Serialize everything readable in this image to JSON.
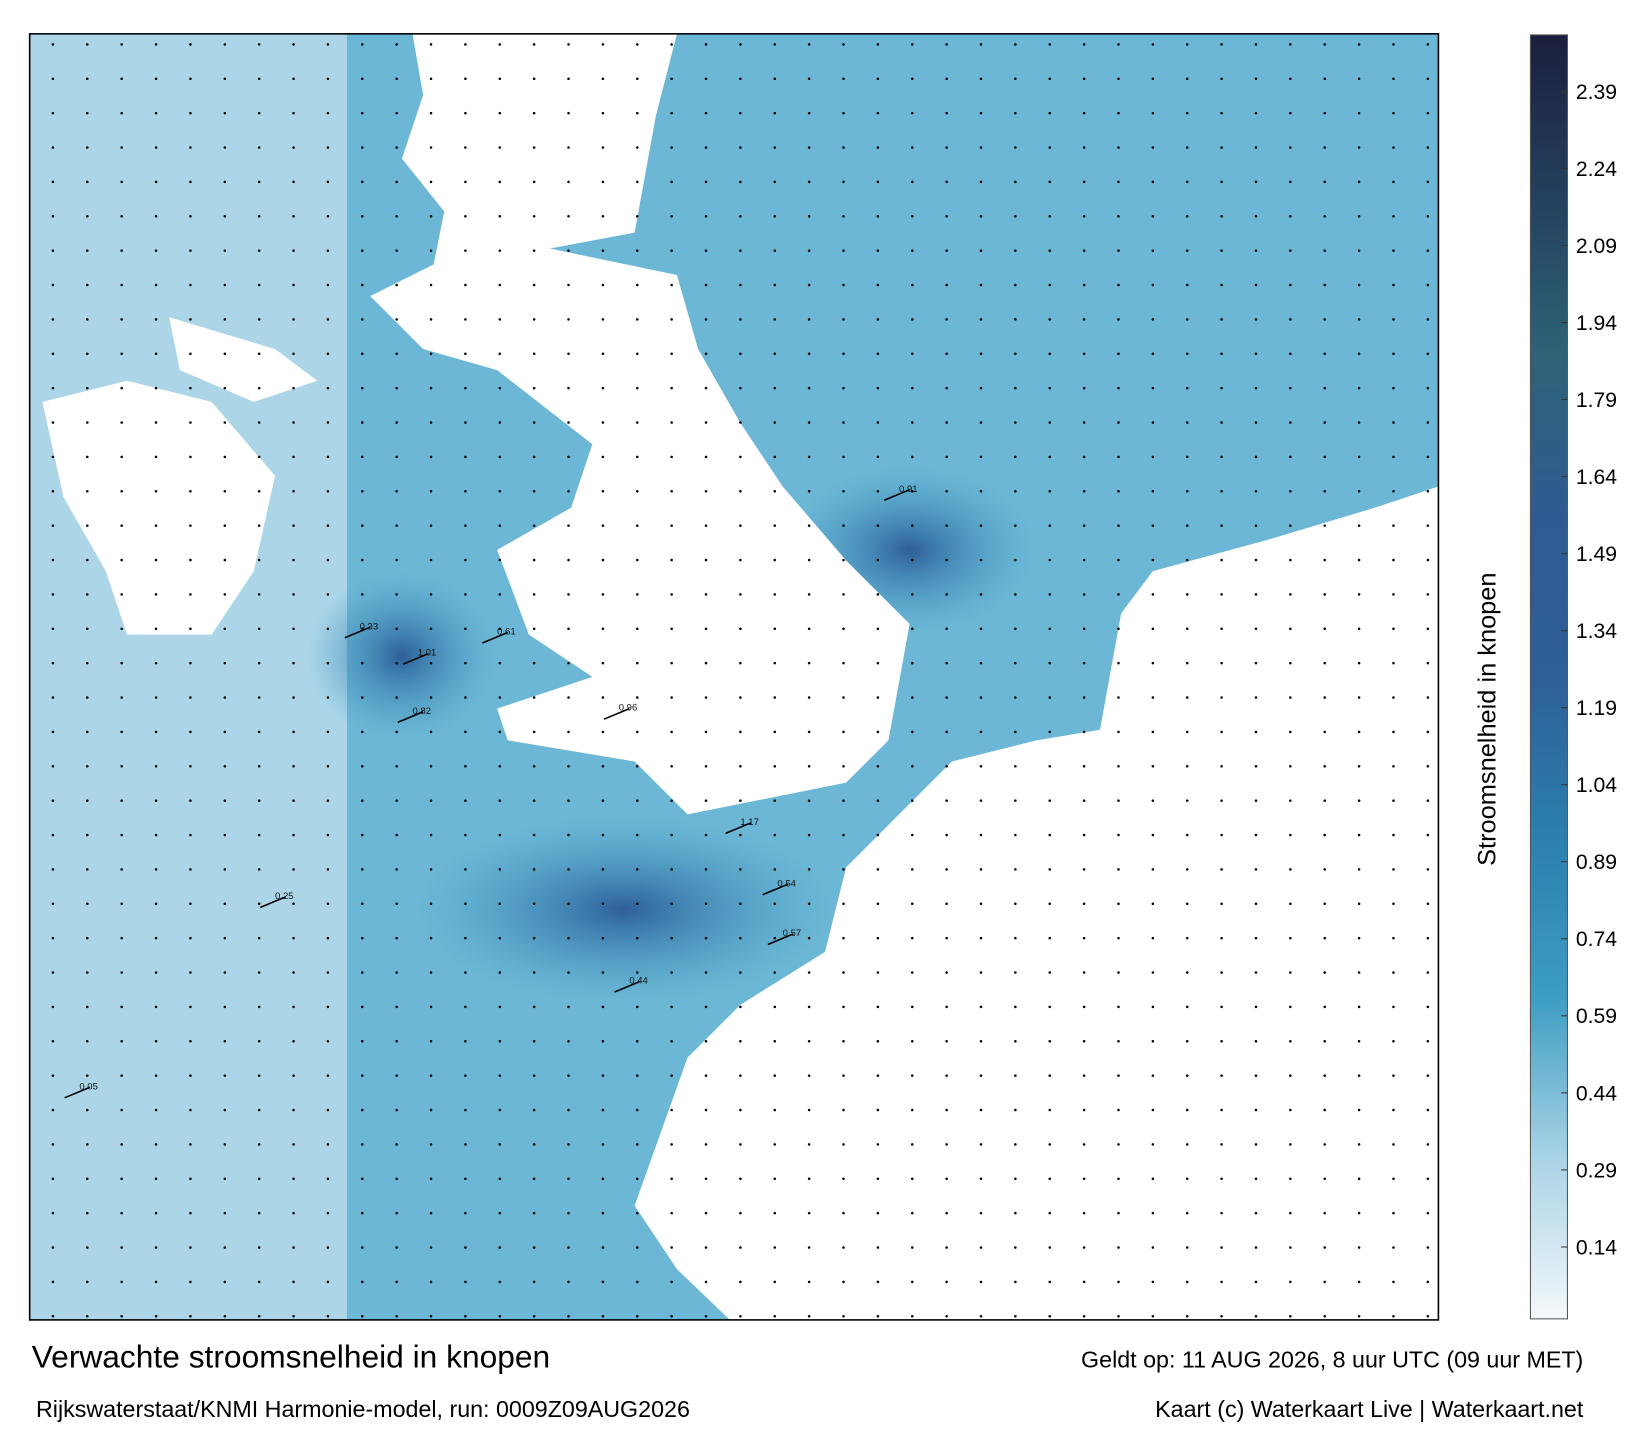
{
  "map": {
    "footer_title": "Verwachte stroomsnelheid in knopen",
    "footer_source": "Rijkswaterstaat/KNMI Harmonie-model, run: 0009Z09AUG2026",
    "valid": "Geldt op: 11 AUG 2026, 8 uur UTC (09 uur MET)",
    "credit": "Kaart (c) Waterkaart Live | Waterkaart.net",
    "labels": [
      "0.96",
      "1.01",
      "0.91",
      "1.17",
      "0.54",
      "0.82",
      "0.61",
      "0.33",
      "0.25",
      "0.05",
      "0.44",
      "0.57"
    ]
  },
  "colorbar": {
    "label": "Stroomsnelheid in knopen",
    "lim": [
      0,
      2.5
    ],
    "ticks": [
      0.14,
      0.29,
      0.44,
      0.59,
      0.74,
      0.89,
      1.04,
      1.19,
      1.34,
      1.49,
      1.64,
      1.79,
      1.94,
      2.09,
      2.24,
      2.39
    ],
    "colors": [
      "#f4f8fb",
      "#a9d3e6",
      "#3d9dc3",
      "#2b7fb0",
      "#2e5f99",
      "#2f5b92",
      "#2e6378",
      "#23405e",
      "#1b1f3d"
    ]
  }
}
